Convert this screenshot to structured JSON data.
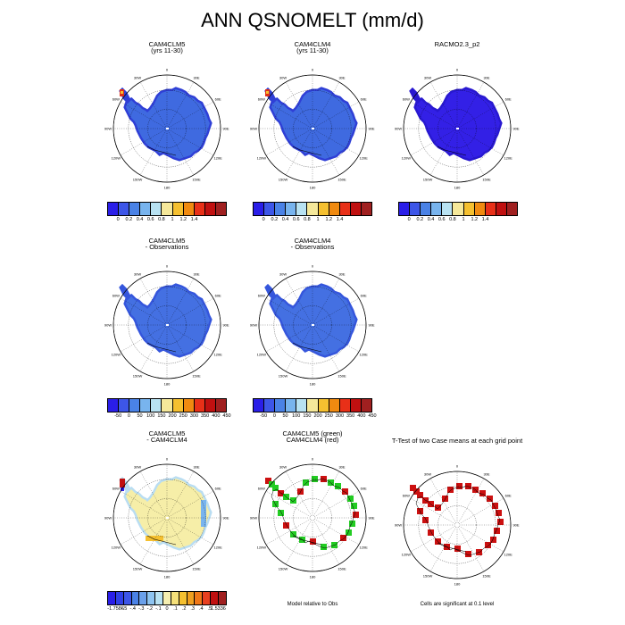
{
  "title": "ANN QSNOMELT (mm/d)",
  "panels": [
    {
      "id": "p1",
      "title_lines": [
        "CAM4CLM5",
        "(yrs 11-30)"
      ],
      "style": "blue-redtip"
    },
    {
      "id": "p2",
      "title_lines": [
        "CAM4CLM4",
        "(yrs 11-30)"
      ],
      "style": "blue-redtip"
    },
    {
      "id": "p3",
      "title_lines": [
        "RACMO2.3_p2"
      ],
      "style": "darkblue"
    },
    {
      "id": "p4",
      "title_lines": [
        "CAM4CLM5",
        "- Observations"
      ],
      "style": "blue"
    },
    {
      "id": "p5",
      "title_lines": [
        "CAM4CLM4",
        "- Observations"
      ],
      "style": "blue"
    },
    {
      "id": "p6",
      "title_lines": [
        "CAM4CLM5",
        "- CAM4CLM4"
      ],
      "style": "yellow"
    },
    {
      "id": "p7",
      "title_lines": [
        "CAM4CLM5 (green)",
        "CAM4CLM4 (red)"
      ],
      "style": "greenred"
    },
    {
      "id": "p8",
      "title_lines": [
        "T-Test of two Case means at each grid point"
      ],
      "style": "red"
    }
  ],
  "map_labels": {
    "lon": [
      "0",
      "30E",
      "60E",
      "90E",
      "120E",
      "150E",
      "180",
      "150W",
      "120W",
      "90W",
      "60W",
      "30W"
    ]
  },
  "colorbars": {
    "snowmelt": {
      "colors": [
        "#2a1ee8",
        "#3d56e8",
        "#4a82e6",
        "#78b4ee",
        "#b8e2f2",
        "#f5e89a",
        "#f5c030",
        "#f08a10",
        "#e83018",
        "#c01010",
        "#a02020"
      ],
      "ticks": [
        "0",
        "0.2",
        "0.4",
        "0.6",
        "0.8",
        "1",
        "1.2",
        "1.4"
      ]
    },
    "difference": {
      "colors": [
        "#2a1ee8",
        "#3d56e8",
        "#4a82e6",
        "#78b4ee",
        "#b8e2f2",
        "#f5e89a",
        "#f5c030",
        "#f08a10",
        "#e83018",
        "#c01010",
        "#a02020"
      ],
      "ticks": [
        "-50",
        "0",
        "50",
        "100",
        "150",
        "200",
        "250",
        "300",
        "350",
        "400",
        "450"
      ]
    },
    "model_diff": {
      "colors": [
        "#2a1ee8",
        "#3040e8",
        "#3d56e8",
        "#4a82e6",
        "#6aa0ea",
        "#8ec4f0",
        "#b8e2f2",
        "#f5eeb0",
        "#f5e07a",
        "#f5c030",
        "#f0a020",
        "#f07818",
        "#e84020",
        "#c01010",
        "#a02020"
      ],
      "ticks": [
        "-1.7586",
        "-.5",
        "-.4",
        "-.3",
        "-.2",
        "-.1",
        "0",
        ".1",
        ".2",
        ".3",
        ".4",
        ".5",
        "1.5336"
      ]
    }
  },
  "notes": {
    "model_relative": "Model relative to Obs",
    "significance": "Cells are significant at 0.1 level"
  },
  "chart_data": [
    {
      "type": "heatmap",
      "title": "CAM4CLM5 (yrs 11-30)",
      "unit": "mm/d",
      "colorbar_ticks": [
        0,
        0.2,
        0.4,
        0.6,
        0.8,
        1,
        1.2,
        1.4
      ]
    },
    {
      "type": "heatmap",
      "title": "CAM4CLM4 (yrs 11-30)",
      "unit": "mm/d",
      "colorbar_ticks": [
        0,
        0.2,
        0.4,
        0.6,
        0.8,
        1,
        1.2,
        1.4
      ]
    },
    {
      "type": "heatmap",
      "title": "RACMO2.3_p2",
      "unit": "mm/d",
      "colorbar_ticks": [
        0,
        0.2,
        0.4,
        0.6,
        0.8,
        1,
        1.2,
        1.4
      ]
    },
    {
      "type": "heatmap",
      "title": "CAM4CLM5 - Observations",
      "colorbar_ticks": [
        -50,
        0,
        50,
        100,
        150,
        200,
        250,
        300,
        350,
        400,
        450
      ]
    },
    {
      "type": "heatmap",
      "title": "CAM4CLM4 - Observations",
      "colorbar_ticks": [
        -50,
        0,
        50,
        100,
        150,
        200,
        250,
        300,
        350,
        400,
        450
      ]
    },
    {
      "type": "heatmap",
      "title": "CAM4CLM5 - CAM4CLM4",
      "colorbar_ticks": [
        -1.7586,
        -0.5,
        -0.4,
        -0.3,
        -0.2,
        -0.1,
        0,
        0.1,
        0.2,
        0.3,
        0.4,
        0.5,
        1.5336
      ]
    },
    {
      "type": "heatmap",
      "title": "CAM4CLM5 (green) CAM4CLM4 (red)",
      "note": "Model relative to Obs"
    },
    {
      "type": "heatmap",
      "title": "T-Test of two Case means at each grid point",
      "note": "Cells are significant at 0.1 level"
    }
  ]
}
